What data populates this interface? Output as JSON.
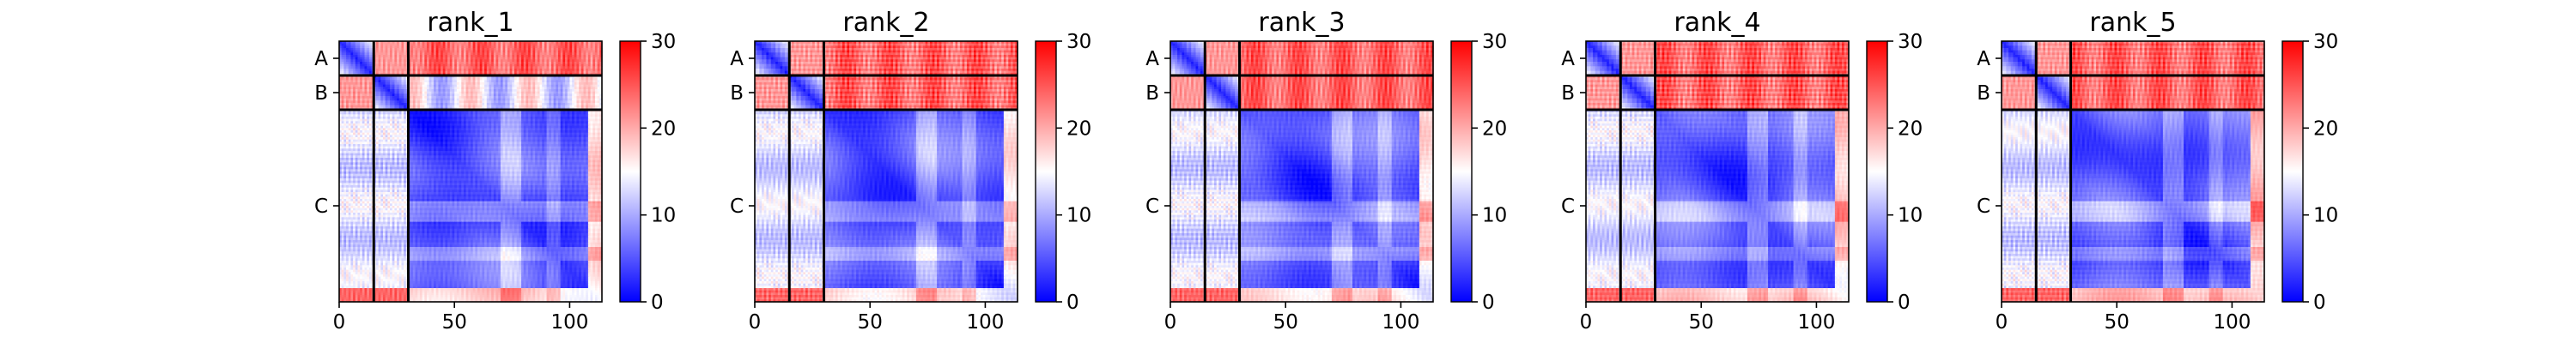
{
  "chart_data": {
    "type": "heatmap",
    "panel_count": 5,
    "titles": [
      "rank_1",
      "rank_2",
      "rank_3",
      "rank_4",
      "rank_5"
    ],
    "matrix_size": 114,
    "chain_boundaries": [
      15,
      30
    ],
    "chain_labels": [
      "A",
      "B",
      "C"
    ],
    "x_ticks": [
      0,
      50,
      100
    ],
    "colorbar": {
      "min": 0,
      "max": 30,
      "ticks": [
        0,
        10,
        20,
        30
      ],
      "colors": [
        "#0000ff",
        "#ffffff",
        "#ff0000"
      ]
    }
  }
}
